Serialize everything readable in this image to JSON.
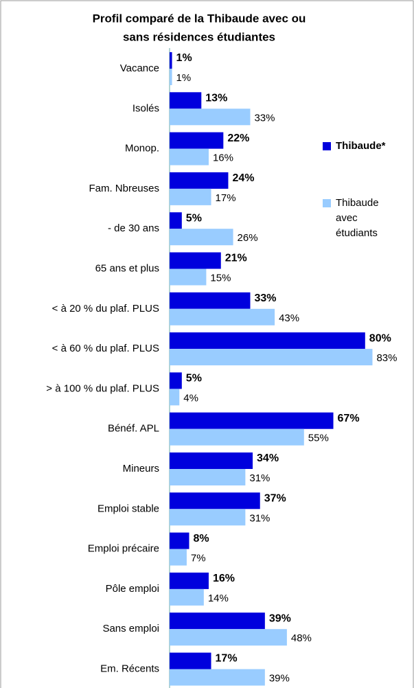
{
  "chart_data": {
    "type": "bar",
    "orientation": "horizontal",
    "title": [
      "Profil comparé de la Thibaude avec ou",
      "sans résidences étudiantes"
    ],
    "categories": [
      "Vacance",
      "Isolés",
      "Monop.",
      "Fam. Nbreuses",
      "- de 30 ans",
      "65 ans et plus",
      "< à 20 % du plaf. PLUS",
      "< à 60 % du plaf. PLUS",
      "> à 100 % du plaf. PLUS",
      "Bénéf. APL",
      "Mineurs",
      "Emploi stable",
      "Emploi précaire",
      "Pôle emploi",
      "Sans emploi",
      "Em. Récents"
    ],
    "series": [
      {
        "name": "Thibaude*",
        "color": "#0000dd",
        "values": [
          1,
          13,
          22,
          24,
          5,
          21,
          33,
          80,
          5,
          67,
          34,
          37,
          8,
          16,
          39,
          17
        ],
        "value_labels": [
          "1%",
          "13%",
          "22%",
          "24%",
          "5%",
          "21%",
          "33%",
          "80%",
          "5%",
          "67%",
          "34%",
          "37%",
          "8%",
          "16%",
          "39%",
          "17%"
        ]
      },
      {
        "name": "Thibaude avec étudiants",
        "color": "#99ccff",
        "values": [
          1,
          33,
          16,
          17,
          26,
          15,
          43,
          83,
          4,
          55,
          31,
          31,
          7,
          14,
          48,
          39
        ],
        "value_labels": [
          "1%",
          "33%",
          "16%",
          "17%",
          "26%",
          "15%",
          "43%",
          "83%",
          "4%",
          "55%",
          "31%",
          "31%",
          "7%",
          "14%",
          "48%",
          "39%"
        ]
      }
    ],
    "xlim": [
      0,
      100
    ],
    "legend": "right"
  }
}
